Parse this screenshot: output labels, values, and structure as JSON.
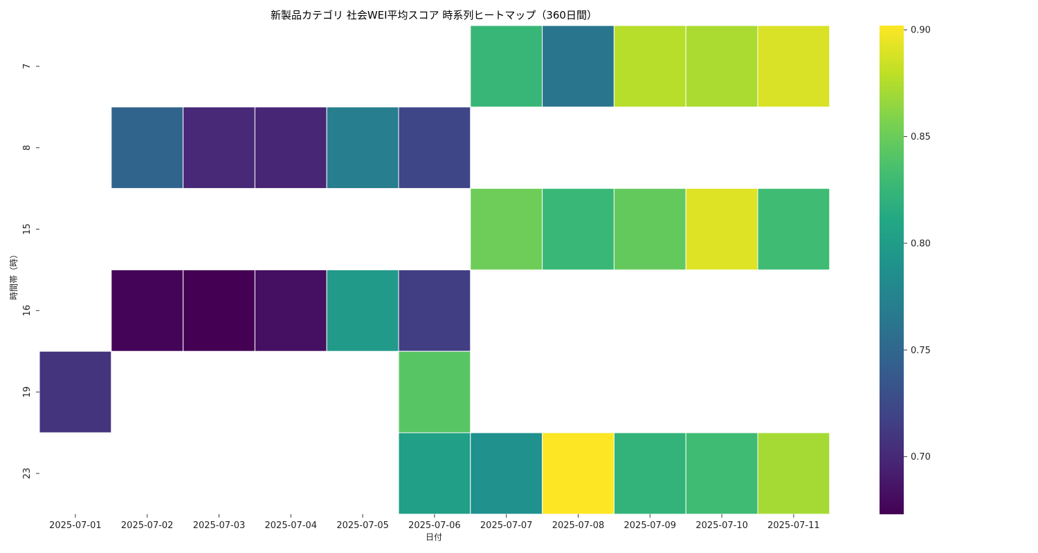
{
  "chart_data": {
    "type": "heatmap",
    "title": "新製品カテゴリ 社会WEI平均スコア 時系列ヒートマップ（360日間）",
    "xlabel": "日付",
    "ylabel": "時間帯（時）",
    "x_categories": [
      "2025-07-01",
      "2025-07-02",
      "2025-07-03",
      "2025-07-04",
      "2025-07-05",
      "2025-07-06",
      "2025-07-07",
      "2025-07-08",
      "2025-07-09",
      "2025-07-10",
      "2025-07-11"
    ],
    "y_categories": [
      "7",
      "8",
      "15",
      "16",
      "19",
      "23"
    ],
    "values": [
      [
        null,
        null,
        null,
        null,
        null,
        null,
        0.825,
        0.762,
        0.877,
        0.873,
        0.889
      ],
      [
        null,
        0.747,
        0.7,
        0.698,
        0.77,
        0.721,
        null,
        null,
        null,
        null,
        null
      ],
      [
        null,
        null,
        null,
        null,
        null,
        null,
        0.851,
        0.826,
        0.847,
        0.891,
        0.83
      ],
      [
        null,
        0.675,
        0.673,
        0.683,
        0.797,
        0.715,
        null,
        null,
        null,
        null,
        null
      ],
      [
        0.708,
        null,
        null,
        null,
        null,
        0.842,
        null,
        null,
        null,
        null,
        null
      ],
      [
        null,
        null,
        null,
        null,
        null,
        0.802,
        0.788,
        0.902,
        0.822,
        0.83,
        0.871
      ]
    ],
    "colormap": "viridis",
    "colorbar": {
      "vmin": 0.673,
      "vmax": 0.902,
      "ticks": [
        "0.70",
        "0.75",
        "0.80",
        "0.85",
        "0.90"
      ]
    },
    "grid": false,
    "legend": "right colorbar"
  }
}
